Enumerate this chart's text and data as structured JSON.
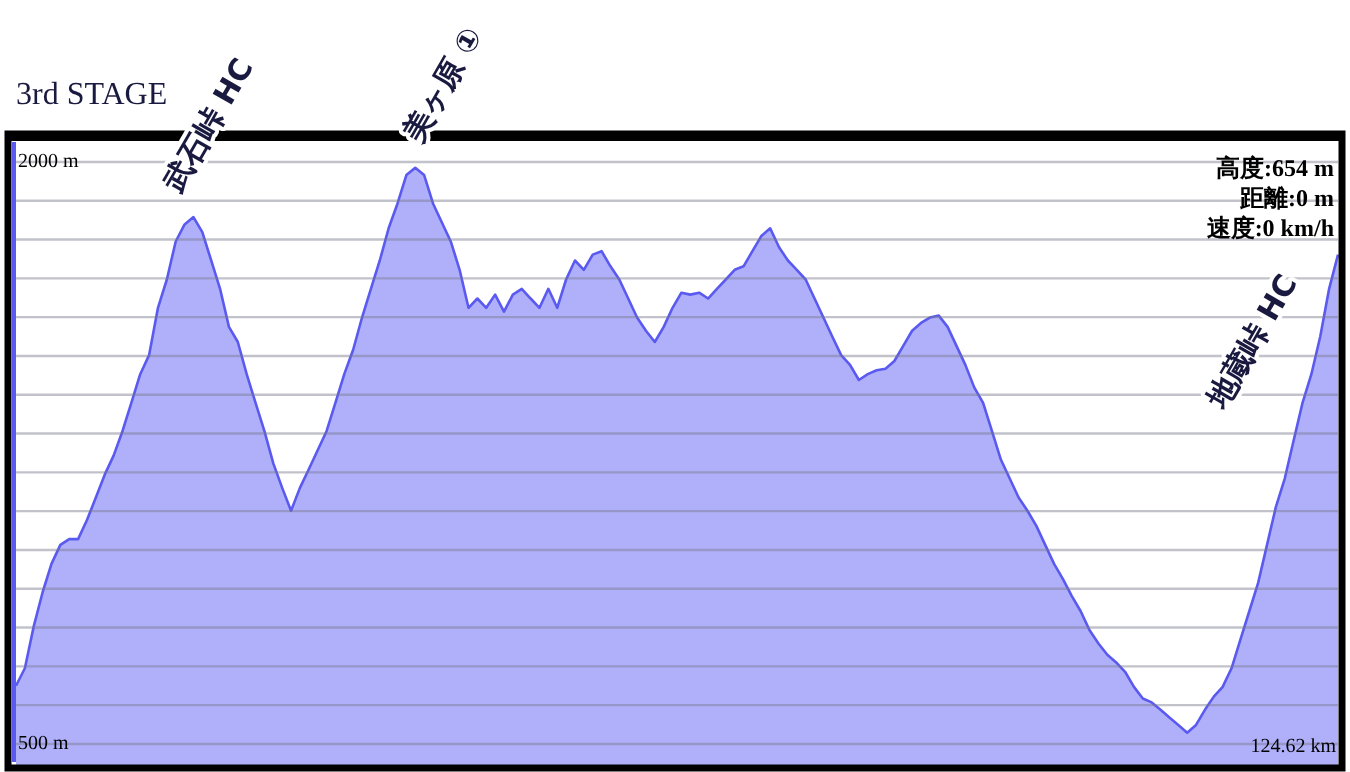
{
  "chart_data": {
    "type": "area",
    "title": "3rd STAGE",
    "categories": [
      null,
      null,
      null,
      null,
      null,
      null,
      null,
      null,
      null,
      null,
      null,
      null,
      null,
      null,
      null,
      null,
      null,
      null,
      null,
      null,
      null,
      null,
      null,
      null,
      null,
      null,
      null,
      null,
      null,
      null,
      null,
      null,
      null,
      null,
      null,
      null,
      null,
      null,
      null,
      null,
      null,
      null,
      null,
      null,
      null,
      null,
      null,
      null,
      null,
      null,
      null,
      null,
      null,
      null,
      null,
      null,
      null,
      null,
      null,
      null,
      null,
      null,
      null,
      null,
      null,
      null,
      null,
      null,
      null,
      null,
      null,
      null,
      null,
      null,
      null,
      null,
      null,
      null,
      null,
      null,
      null,
      null,
      null,
      null,
      null,
      null,
      null,
      null,
      null,
      null,
      null,
      null,
      null,
      null,
      null,
      null,
      null,
      null,
      null,
      null,
      null,
      null,
      null,
      null,
      null,
      null,
      null,
      null,
      null,
      null,
      null,
      null,
      null,
      null,
      null,
      null,
      null,
      null,
      null,
      null,
      null,
      null,
      null,
      null,
      null,
      null,
      null,
      null,
      null,
      null,
      null,
      null,
      null,
      null,
      null,
      null,
      null,
      null,
      null,
      null,
      null,
      null,
      null,
      null,
      null,
      null,
      null,
      null,
      null,
      null
    ],
    "series": [
      {
        "color": "#5a5af0",
        "values": [
          650,
          695,
          803,
          891,
          964,
          1013,
          1028,
          1028,
          1077,
          1135,
          1194,
          1243,
          1306,
          1379,
          1453,
          1502,
          1624,
          1697,
          1795,
          1839,
          1858,
          1819,
          1746,
          1673,
          1575,
          1536,
          1453,
          1379,
          1306,
          1223,
          1160,
          1101,
          1160,
          1208,
          1257,
          1306,
          1379,
          1453,
          1516,
          1599,
          1673,
          1746,
          1829,
          1893,
          1966,
          1985,
          1966,
          1893,
          1844,
          1795,
          1722,
          1624,
          1648,
          1624,
          1658,
          1614,
          1658,
          1673,
          1648,
          1624,
          1673,
          1624,
          1697,
          1746,
          1722,
          1761,
          1770,
          1731,
          1697,
          1648,
          1599,
          1565,
          1536,
          1575,
          1624,
          1663,
          1658,
          1663,
          1648,
          1673,
          1697,
          1722,
          1731,
          1770,
          1809,
          1829,
          1780,
          1746,
          1722,
          1697,
          1648,
          1599,
          1550,
          1502,
          1477,
          1438,
          1453,
          1463,
          1467,
          1487,
          1526,
          1565,
          1585,
          1599,
          1604,
          1575,
          1526,
          1477,
          1419,
          1379,
          1306,
          1233,
          1184,
          1135,
          1101,
          1062,
          1013,
          964,
          925,
          881,
          842,
          793,
          759,
          730,
          710,
          686,
          647,
          617,
          607,
          588,
          568,
          549,
          529,
          549,
          588,
          622,
          647,
          695,
          769,
          842,
          915,
          1013,
          1111,
          1184,
          1282,
          1379,
          1453,
          1550,
          1673,
          1761
        ]
      }
    ],
    "ylim": [
      438,
      2072
    ],
    "yticks": [
      {
        "value": 500,
        "label": "500 m"
      },
      {
        "value": 600,
        "label": null
      },
      {
        "value": 700,
        "label": null
      },
      {
        "value": 800,
        "label": null
      },
      {
        "value": 900,
        "label": null
      },
      {
        "value": 1000,
        "label": null
      },
      {
        "value": 1100,
        "label": null
      },
      {
        "value": 1200,
        "label": null
      },
      {
        "value": 1300,
        "label": null
      },
      {
        "value": 1400,
        "label": null
      },
      {
        "value": 1500,
        "label": null
      },
      {
        "value": 1600,
        "label": null
      },
      {
        "value": 1700,
        "label": null
      },
      {
        "value": 1800,
        "label": null
      },
      {
        "value": 1900,
        "label": null
      },
      {
        "value": 2000,
        "label": "2000 m"
      }
    ],
    "grid": "y",
    "annotations": [
      "武石峠 HC",
      "美ヶ原 ①",
      "地蔵峠 HC",
      "高度:654 m",
      "距離:0 m",
      "速度:0 km/h",
      "124.62 km"
    ]
  }
}
